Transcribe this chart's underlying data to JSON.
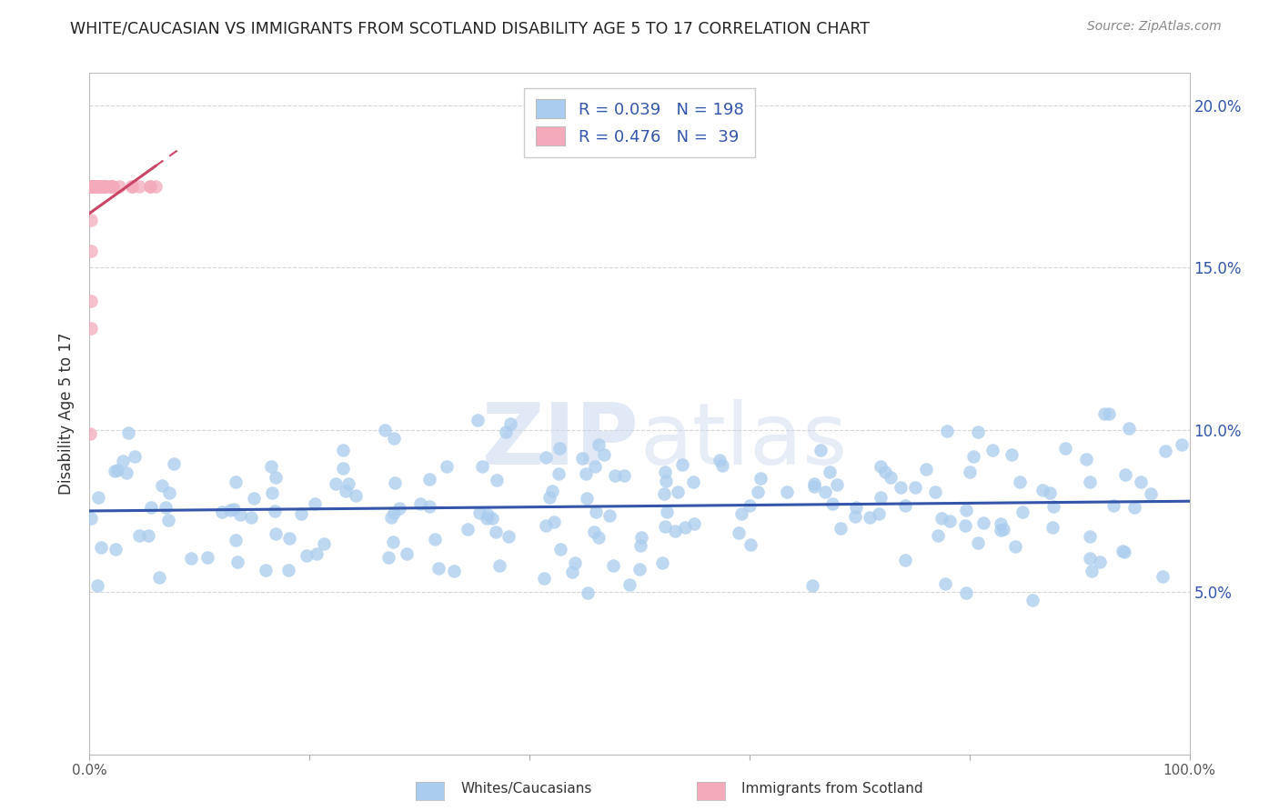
{
  "title": "WHITE/CAUCASIAN VS IMMIGRANTS FROM SCOTLAND DISABILITY AGE 5 TO 17 CORRELATION CHART",
  "source": "Source: ZipAtlas.com",
  "ylabel": "Disability Age 5 to 17",
  "xlim": [
    0.0,
    1.0
  ],
  "ylim": [
    0.0,
    0.21
  ],
  "blue_color": "#AACCEE",
  "pink_color": "#F4AABB",
  "blue_line_color": "#3355AA",
  "pink_line_color": "#CC4466",
  "blue_R": 0.039,
  "blue_N": 198,
  "pink_R": 0.476,
  "pink_N": 39,
  "legend_label_blue": "Whites/Caucasians",
  "legend_label_pink": "Immigrants from Scotland",
  "watermark_zip": "ZIP",
  "watermark_atlas": "atlas",
  "background_color": "#ffffff",
  "grid_color": "#cccccc",
  "title_color": "#222222",
  "source_color": "#888888",
  "legend_text_color": "#3355AA",
  "yticks": [
    0.0,
    0.05,
    0.1,
    0.15,
    0.2
  ],
  "ytick_labels_right": [
    "",
    "5.0%",
    "10.0%",
    "15.0%",
    "20.0%"
  ],
  "xticks": [
    0.0,
    0.2,
    0.4,
    0.6,
    0.8,
    1.0
  ],
  "xtick_labels": [
    "0.0%",
    "",
    "",
    "",
    "",
    "100.0%"
  ]
}
